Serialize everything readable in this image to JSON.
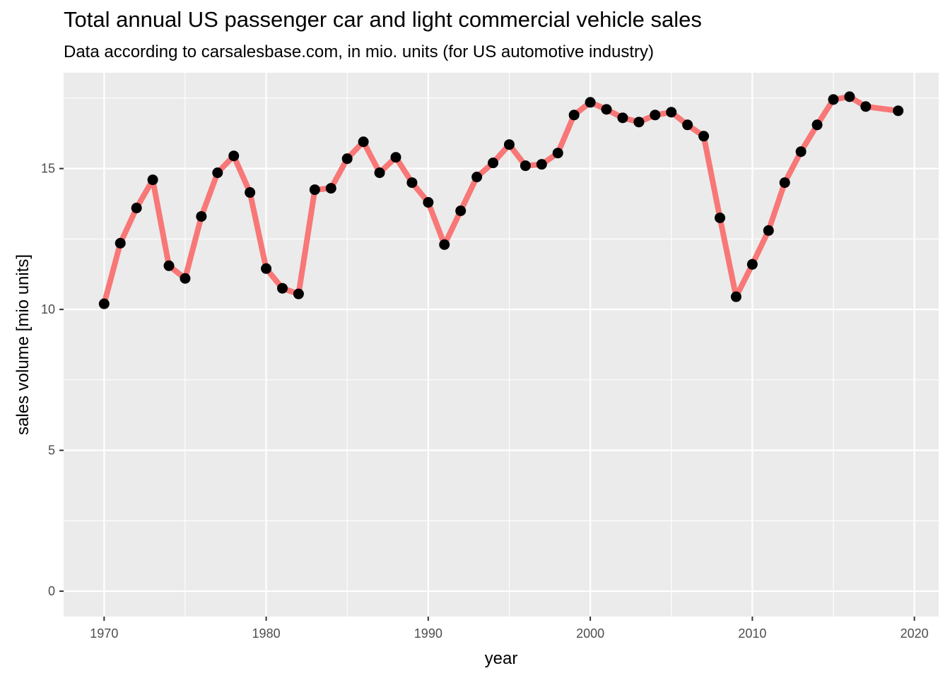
{
  "chart_data": {
    "type": "line",
    "title": "Total annual US passenger car and light commercial vehicle sales",
    "subtitle": "Data according to carsalesbase.com, in mio. units (for US automotive industry)",
    "xlabel": "year",
    "ylabel": "sales volume [mio units]",
    "xlim": [
      1967.5,
      2021.5
    ],
    "ylim": [
      -0.9,
      18.4
    ],
    "xticks": [
      1970,
      1980,
      1990,
      2000,
      2010,
      2020
    ],
    "yticks": [
      0,
      5,
      10,
      15
    ],
    "grid": true,
    "line_color": "#f87777",
    "point_color": "#000000",
    "panel_background": "#ebebeb",
    "x": [
      1970,
      1971,
      1972,
      1973,
      1974,
      1975,
      1976,
      1977,
      1978,
      1979,
      1980,
      1981,
      1982,
      1983,
      1984,
      1985,
      1986,
      1987,
      1988,
      1989,
      1990,
      1991,
      1992,
      1993,
      1994,
      1995,
      1996,
      1997,
      1998,
      1999,
      2000,
      2001,
      2002,
      2003,
      2004,
      2005,
      2006,
      2007,
      2008,
      2009,
      2010,
      2011,
      2012,
      2013,
      2014,
      2015,
      2016,
      2017,
      2019
    ],
    "y": [
      10.2,
      12.35,
      13.6,
      14.6,
      11.55,
      11.1,
      13.3,
      14.85,
      15.45,
      14.15,
      11.45,
      10.75,
      10.55,
      14.25,
      14.3,
      15.35,
      15.95,
      14.85,
      15.4,
      14.5,
      13.8,
      12.3,
      13.5,
      14.7,
      15.2,
      15.85,
      15.1,
      15.15,
      15.55,
      16.9,
      17.35,
      17.1,
      16.8,
      16.65,
      16.9,
      17.0,
      16.55,
      16.15,
      13.25,
      10.45,
      11.6,
      12.8,
      14.5,
      15.6,
      16.55,
      17.45,
      17.55,
      17.2,
      17.05
    ]
  }
}
